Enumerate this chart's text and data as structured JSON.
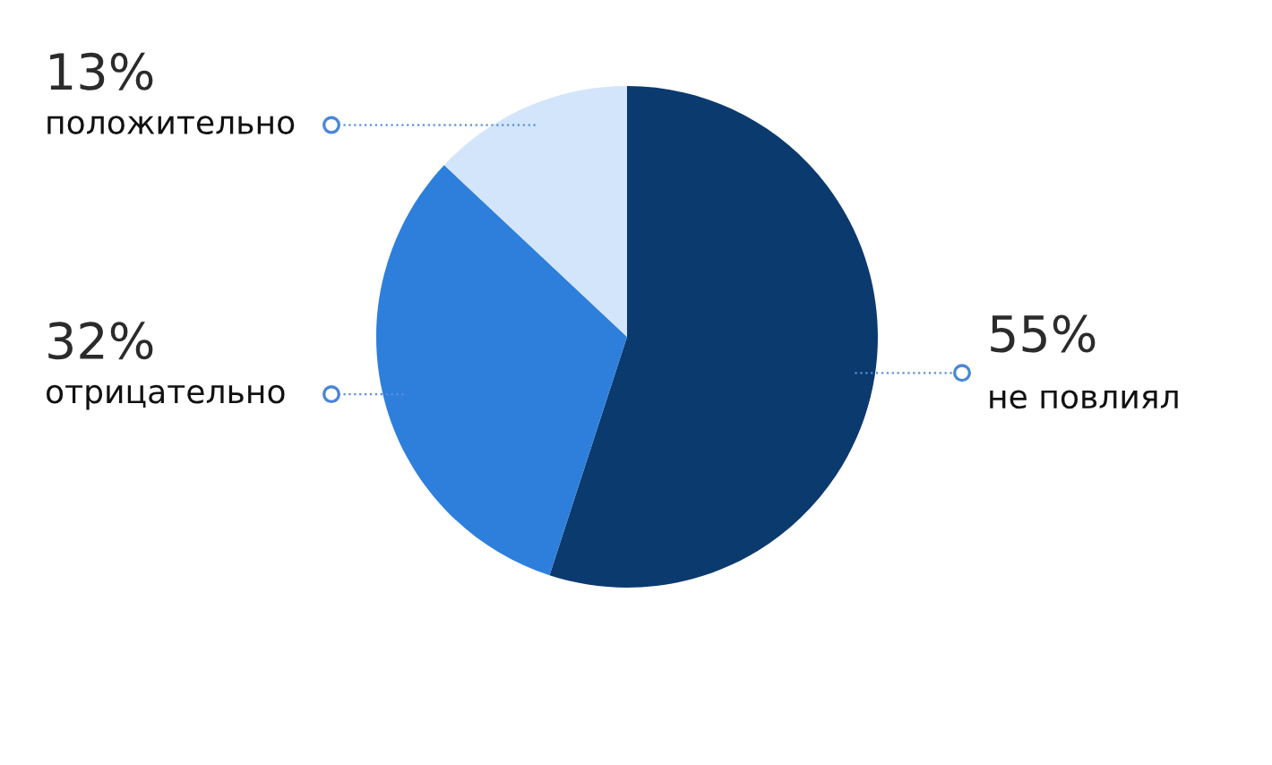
{
  "chart_data": {
    "type": "pie",
    "categories": [
      "не повлиял",
      "отрицательно",
      "положительно"
    ],
    "values": [
      55,
      32,
      13
    ],
    "value_labels": [
      "55%",
      "32%",
      "13%"
    ],
    "colors": [
      "#0b3a6f",
      "#2e7fdb",
      "#d3e5fb"
    ]
  }
}
